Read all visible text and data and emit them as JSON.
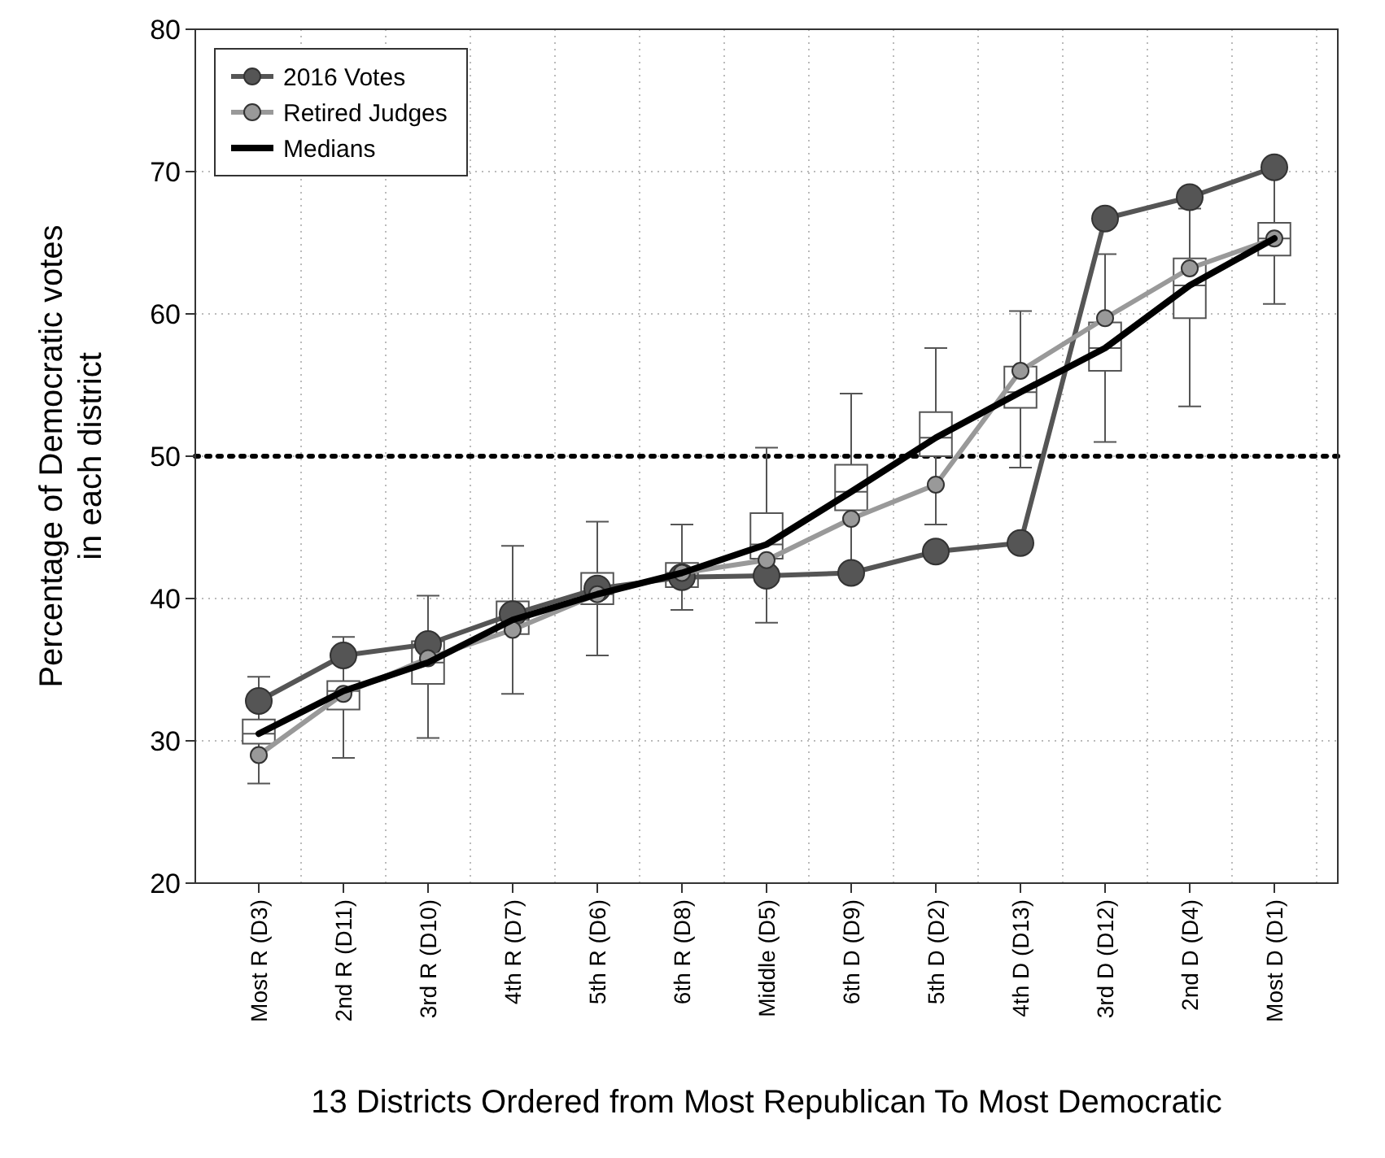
{
  "chart_data": {
    "type": "box",
    "xlabel": "13 Districts Ordered from Most Republican To Most Democratic",
    "ylabel": "Percentage of Democratic votes in each district",
    "categories": [
      "Most R (D3)",
      "2nd R (D11)",
      "3rd R (D10)",
      "4th R (D7)",
      "5th R (D6)",
      "6th R (D8)",
      "Middle (D5)",
      "6th D (D9)",
      "5th D (D2)",
      "4th D (D13)",
      "3rd D (D12)",
      "2nd D (D4)",
      "Most D (D1)"
    ],
    "boxes": [
      {
        "low": 27,
        "q1": 29.8,
        "median": 30.5,
        "q3": 31.5,
        "high": 34.5
      },
      {
        "low": 28.8,
        "q1": 32.2,
        "median": 33.5,
        "q3": 34.2,
        "high": 37.3
      },
      {
        "low": 30.2,
        "q1": 34,
        "median": 35.5,
        "q3": 37,
        "high": 40.2
      },
      {
        "low": 33.3,
        "q1": 37.5,
        "median": 38.5,
        "q3": 39.8,
        "high": 43.7
      },
      {
        "low": 36,
        "q1": 39.6,
        "median": 40.3,
        "q3": 41.8,
        "high": 45.4
      },
      {
        "low": 39.2,
        "q1": 40.8,
        "median": 41.8,
        "q3": 42.5,
        "high": 45.2
      },
      {
        "low": 38.3,
        "q1": 42.8,
        "median": 43.8,
        "q3": 46,
        "high": 50.6
      },
      {
        "low": 41.3,
        "q1": 46.2,
        "median": 47.5,
        "q3": 49.4,
        "high": 54.4
      },
      {
        "low": 45.2,
        "q1": 50,
        "median": 51.3,
        "q3": 53.1,
        "high": 57.6
      },
      {
        "low": 49.2,
        "q1": 53.4,
        "median": 54.5,
        "q3": 56.3,
        "high": 60.2
      },
      {
        "low": 51,
        "q1": 56,
        "median": 57.6,
        "q3": 59.4,
        "high": 64.2
      },
      {
        "low": 53.5,
        "q1": 59.7,
        "median": 62,
        "q3": 63.9,
        "high": 67.4
      },
      {
        "low": 60.7,
        "q1": 64.1,
        "median": 65.3,
        "q3": 66.4,
        "high": 70.3
      }
    ],
    "series": [
      {
        "name": "2016 Votes",
        "type": "line",
        "color": "#555555",
        "marker": "circle",
        "values": [
          32.8,
          36,
          36.8,
          38.9,
          40.7,
          41.5,
          41.6,
          41.8,
          43.3,
          43.9,
          66.7,
          68.2,
          70.3
        ]
      },
      {
        "name": "Retired Judges",
        "type": "line",
        "color": "#999999",
        "marker": "circle",
        "values": [
          29,
          33.3,
          35.8,
          37.8,
          40.3,
          41.8,
          42.7,
          45.6,
          48,
          56,
          59.7,
          63.2,
          65.3
        ]
      },
      {
        "name": "Medians",
        "type": "line",
        "color": "#000000",
        "marker": "none",
        "values": [
          30.5,
          33.5,
          35.5,
          38.5,
          40.3,
          41.8,
          43.8,
          47.5,
          51.3,
          54.5,
          57.6,
          62,
          65.3
        ]
      }
    ],
    "ylim": [
      20,
      80
    ],
    "yticks": [
      20,
      30,
      40,
      50,
      60,
      70,
      80
    ],
    "ref_lines": [
      {
        "axis": "y",
        "value": 50,
        "color": "#000000",
        "line_style": "dotted"
      }
    ],
    "grid": true,
    "legend": "top left"
  }
}
